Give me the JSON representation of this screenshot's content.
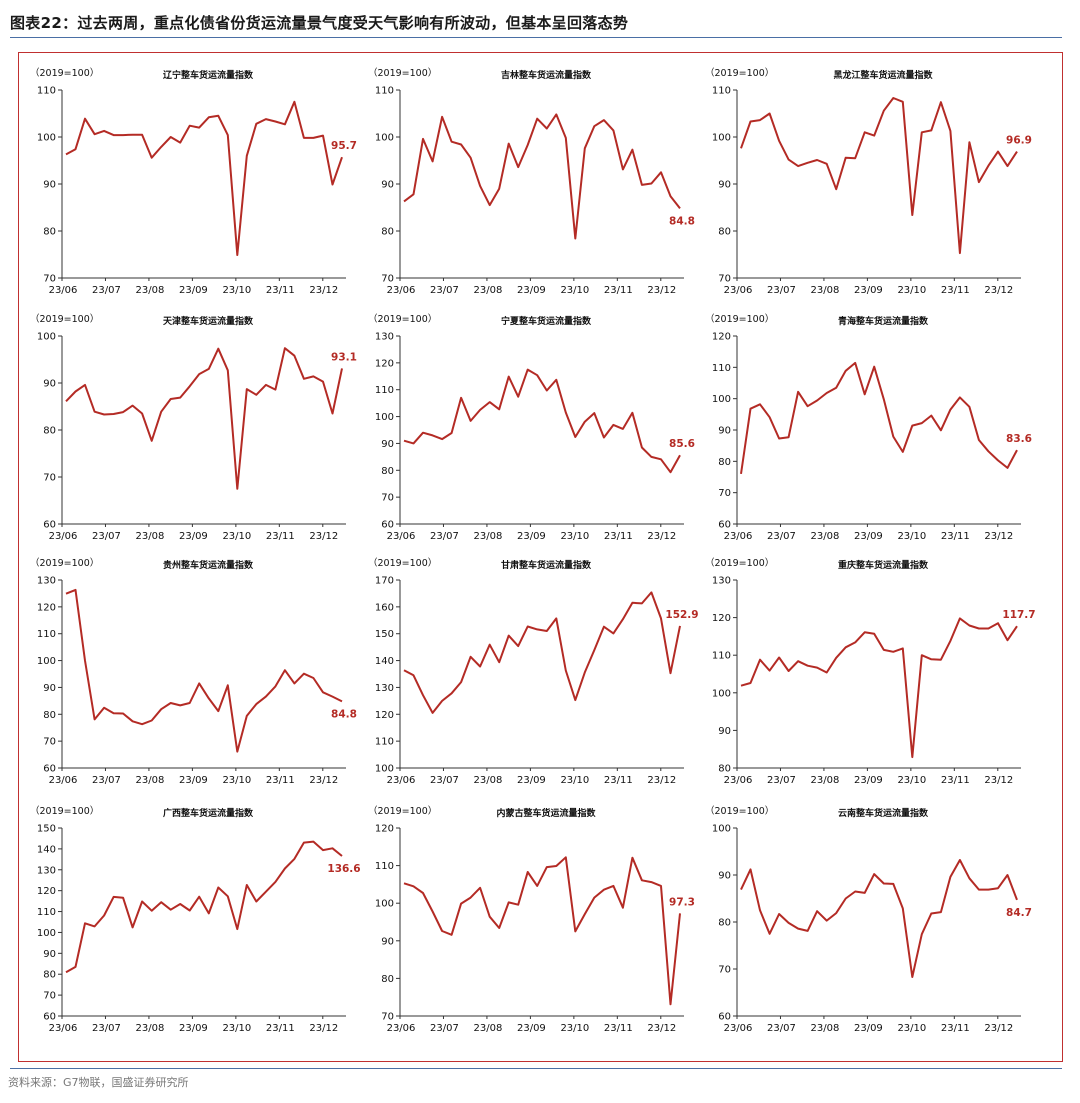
{
  "header": {
    "title": "图表22：过去两周，重点化债省份货运流量景气度受天气影响有所波动，但基本呈回落态势"
  },
  "footer": {
    "source": "资料来源：G7物联，国盛证券研究所"
  },
  "style": {
    "line_color": "#b42b25",
    "label_color": "#b42b25",
    "axis_color": "#333333",
    "frame_color": "#c03030"
  },
  "chart_data": [
    {
      "type": "line",
      "title": "辽宁整车货运流量指数",
      "unit": "（2019=100）",
      "ylim": [
        70,
        110
      ],
      "yticks": [
        70,
        80,
        90,
        100,
        110
      ],
      "xlabels": [
        "23/06",
        "23/07",
        "23/08",
        "23/09",
        "23/10",
        "23/11",
        "23/12"
      ],
      "last_label": "95.7",
      "values": [
        96.3,
        97.4,
        103.9,
        100.6,
        101.3,
        100.4,
        100.4,
        100.5,
        100.5,
        95.6,
        97.9,
        100.0,
        98.8,
        102.4,
        102.0,
        104.2,
        104.5,
        100.4,
        74.9,
        96.0,
        102.8,
        103.8,
        103.3,
        102.7,
        107.5,
        99.8,
        99.8,
        100.3,
        89.9,
        95.7
      ]
    },
    {
      "type": "line",
      "title": "吉林整车货运流量指数",
      "unit": "（2019=100）",
      "ylim": [
        70,
        110
      ],
      "yticks": [
        70,
        80,
        90,
        100,
        110
      ],
      "xlabels": [
        "23/06",
        "23/07",
        "23/08",
        "23/09",
        "23/10",
        "23/11",
        "23/12"
      ],
      "last_label": "84.8",
      "values": [
        86.3,
        87.8,
        99.6,
        94.8,
        104.3,
        99.0,
        98.4,
        95.6,
        89.6,
        85.5,
        89.0,
        98.6,
        93.6,
        98.3,
        103.9,
        101.8,
        104.8,
        99.8,
        78.4,
        97.6,
        102.3,
        103.6,
        101.4,
        93.1,
        97.3,
        89.8,
        90.1,
        92.5,
        87.4,
        84.8
      ]
    },
    {
      "type": "line",
      "title": "黑龙江整车货运流量指数",
      "unit": "（2019=100）",
      "ylim": [
        70,
        110
      ],
      "yticks": [
        70,
        80,
        90,
        100,
        110
      ],
      "xlabels": [
        "23/06",
        "23/07",
        "23/08",
        "23/09",
        "23/10",
        "23/11",
        "23/12"
      ],
      "last_label": "96.9",
      "values": [
        97.6,
        103.3,
        103.6,
        105.0,
        99.2,
        95.2,
        93.8,
        94.5,
        95.1,
        94.3,
        88.9,
        95.6,
        95.5,
        101.0,
        100.3,
        105.6,
        108.3,
        107.5,
        83.4,
        101.0,
        101.4,
        107.4,
        101.3,
        75.3,
        98.9,
        90.4,
        93.9,
        96.9,
        93.8,
        96.9
      ]
    },
    {
      "type": "line",
      "title": "天津整车货运流量指数",
      "unit": "（2019=100）",
      "ylim": [
        60,
        100
      ],
      "yticks": [
        60,
        70,
        80,
        90,
        100
      ],
      "xlabels": [
        "23/06",
        "23/07",
        "23/08",
        "23/09",
        "23/10",
        "23/11",
        "23/12"
      ],
      "last_label": "93.1",
      "values": [
        86.1,
        88.2,
        89.6,
        83.9,
        83.3,
        83.4,
        83.8,
        85.2,
        83.5,
        77.7,
        83.9,
        86.6,
        86.9,
        89.3,
        91.9,
        93.0,
        97.3,
        92.7,
        67.5,
        88.7,
        87.5,
        89.6,
        88.6,
        97.4,
        95.8,
        90.9,
        91.4,
        90.3,
        83.5,
        93.1
      ]
    },
    {
      "type": "line",
      "title": "宁夏整车货运流量指数",
      "unit": "（2019=100）",
      "ylim": [
        60,
        130
      ],
      "yticks": [
        60,
        70,
        80,
        90,
        100,
        110,
        120,
        130
      ],
      "xlabels": [
        "23/06",
        "23/07",
        "23/08",
        "23/09",
        "23/10",
        "23/11",
        "23/12"
      ],
      "last_label": "85.6",
      "values": [
        91.0,
        90.0,
        94.0,
        93.0,
        91.6,
        93.9,
        107.0,
        98.4,
        102.5,
        105.4,
        102.7,
        114.9,
        107.4,
        117.5,
        115.4,
        109.7,
        113.7,
        101.5,
        92.4,
        98.1,
        101.3,
        92.2,
        96.9,
        95.4,
        101.4,
        88.5,
        85.0,
        84.1,
        79.3,
        85.6
      ]
    },
    {
      "type": "line",
      "title": "青海整车货运流量指数",
      "unit": "（2019=100）",
      "ylim": [
        60,
        120
      ],
      "yticks": [
        60,
        70,
        80,
        90,
        100,
        110,
        120
      ],
      "xlabels": [
        "23/06",
        "23/07",
        "23/08",
        "23/09",
        "23/10",
        "23/11",
        "23/12"
      ],
      "last_label": "83.6",
      "values": [
        76.0,
        96.8,
        98.2,
        94.1,
        87.3,
        87.7,
        102.2,
        97.6,
        99.4,
        101.8,
        103.5,
        108.9,
        111.4,
        101.4,
        110.2,
        99.8,
        87.9,
        83.0,
        91.4,
        92.2,
        94.6,
        89.9,
        96.5,
        100.4,
        97.4,
        86.8,
        83.2,
        80.3,
        77.9,
        83.6
      ]
    },
    {
      "type": "line",
      "title": "贵州整车货运流量指数",
      "unit": "（2019=100）",
      "ylim": [
        60,
        130
      ],
      "yticks": [
        60,
        70,
        80,
        90,
        100,
        110,
        120,
        130
      ],
      "xlabels": [
        "23/06",
        "23/07",
        "23/08",
        "23/09",
        "23/10",
        "23/11",
        "23/12"
      ],
      "last_label": "84.8",
      "values": [
        124.9,
        126.3,
        100.0,
        78.1,
        82.4,
        80.4,
        80.3,
        77.4,
        76.3,
        77.7,
        81.9,
        84.2,
        83.3,
        84.2,
        91.5,
        85.9,
        81.2,
        90.8,
        66.1,
        79.4,
        83.8,
        86.6,
        90.4,
        96.4,
        91.5,
        95.1,
        93.5,
        88.2,
        86.6,
        84.8
      ]
    },
    {
      "type": "line",
      "title": "甘肃整车货运流量指数",
      "unit": "（2019=100）",
      "ylim": [
        100,
        170
      ],
      "yticks": [
        100,
        110,
        120,
        130,
        140,
        150,
        160,
        170
      ],
      "xlabels": [
        "23/06",
        "23/07",
        "23/08",
        "23/09",
        "23/10",
        "23/11",
        "23/12"
      ],
      "last_label": "152.9",
      "values": [
        136.4,
        134.5,
        127.1,
        120.5,
        125.0,
        127.8,
        132.0,
        141.4,
        137.8,
        145.9,
        139.4,
        149.3,
        145.4,
        152.7,
        151.6,
        151.0,
        155.7,
        136.3,
        125.3,
        135.6,
        143.9,
        152.6,
        150.1,
        155.4,
        161.5,
        161.3,
        165.4,
        155.7,
        135.3,
        152.9
      ]
    },
    {
      "type": "line",
      "title": "重庆整车货运流量指数",
      "unit": "（2019=100）",
      "ylim": [
        80,
        130
      ],
      "yticks": [
        80,
        90,
        100,
        110,
        120,
        130
      ],
      "xlabels": [
        "23/06",
        "23/07",
        "23/08",
        "23/09",
        "23/10",
        "23/11",
        "23/12"
      ],
      "last_label": "117.7",
      "values": [
        101.9,
        102.6,
        108.8,
        105.9,
        109.4,
        105.8,
        108.4,
        107.2,
        106.7,
        105.4,
        109.3,
        112.1,
        113.4,
        116.1,
        115.7,
        111.4,
        110.9,
        111.8,
        82.9,
        110.0,
        108.9,
        108.8,
        113.8,
        119.8,
        117.9,
        117.1,
        117.1,
        118.5,
        114.0,
        117.7
      ]
    },
    {
      "type": "line",
      "title": "广西整车货运流量指数",
      "unit": "（2019=100）",
      "ylim": [
        60,
        150
      ],
      "yticks": [
        60,
        70,
        80,
        90,
        100,
        110,
        120,
        130,
        140,
        150
      ],
      "xlabels": [
        "23/06",
        "23/07",
        "23/08",
        "23/09",
        "23/10",
        "23/11",
        "23/12"
      ],
      "last_label": "136.6",
      "values": [
        80.9,
        83.5,
        104.4,
        102.9,
        108.1,
        117.0,
        116.6,
        102.4,
        114.8,
        110.4,
        114.5,
        110.9,
        113.6,
        110.5,
        117.1,
        109.1,
        121.5,
        117.3,
        101.6,
        122.7,
        114.8,
        119.5,
        124.2,
        130.6,
        135.2,
        143.0,
        143.5,
        139.4,
        140.3,
        136.6
      ]
    },
    {
      "type": "line",
      "title": "内蒙古整车货运流量指数",
      "unit": "（2019=100）",
      "ylim": [
        70,
        120
      ],
      "yticks": [
        70,
        80,
        90,
        100,
        110,
        120
      ],
      "xlabels": [
        "23/06",
        "23/07",
        "23/08",
        "23/09",
        "23/10",
        "23/11",
        "23/12"
      ],
      "last_label": "97.3",
      "values": [
        105.3,
        104.5,
        102.7,
        97.8,
        92.6,
        91.6,
        99.9,
        101.5,
        104.1,
        96.4,
        93.4,
        100.2,
        99.6,
        108.3,
        104.6,
        109.6,
        109.9,
        112.2,
        92.5,
        97.1,
        101.5,
        103.6,
        104.6,
        98.8,
        112.1,
        106.1,
        105.6,
        104.6,
        73.1,
        97.3
      ]
    },
    {
      "type": "line",
      "title": "云南整车货运流量指数",
      "unit": "（2019=100）",
      "ylim": [
        60,
        100
      ],
      "yticks": [
        60,
        70,
        80,
        90,
        100
      ],
      "xlabels": [
        "23/06",
        "23/07",
        "23/08",
        "23/09",
        "23/10",
        "23/11",
        "23/12"
      ],
      "last_label": "84.7",
      "values": [
        86.9,
        91.2,
        82.5,
        77.5,
        81.7,
        79.8,
        78.6,
        78.1,
        82.3,
        80.3,
        81.9,
        85.0,
        86.5,
        86.2,
        90.2,
        88.2,
        88.1,
        82.9,
        68.3,
        77.4,
        81.8,
        82.1,
        89.6,
        93.2,
        89.3,
        86.9,
        86.9,
        87.2,
        90.0,
        84.7
      ]
    }
  ]
}
